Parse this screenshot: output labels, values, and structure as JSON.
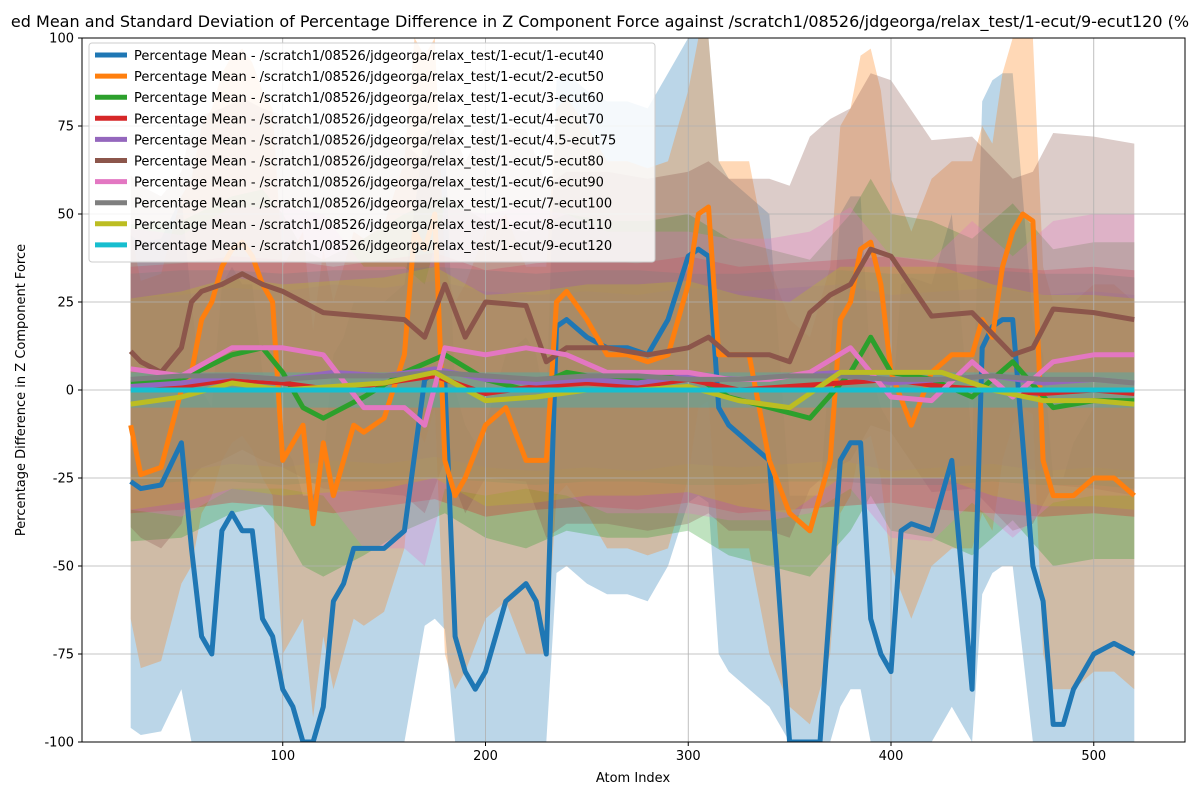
{
  "chart_data": {
    "type": "line",
    "title": "ed Mean and Standard Deviation of Percentage Difference in Z Component Force against /scratch1/08526/jdgeorga/relax_test/1-ecut/9-ecut120 (%",
    "xlabel": "Atom Index",
    "ylabel": "Percentage Difference in Z Component Force",
    "xlim": [
      1,
      545
    ],
    "ylim": [
      -100,
      100
    ],
    "xticks": [
      100,
      200,
      300,
      400,
      500
    ],
    "yticks": [
      -100,
      -75,
      -50,
      -25,
      0,
      25,
      50,
      75,
      100
    ],
    "grid": true,
    "legend_position": "top-left",
    "series": [
      {
        "name": "Percentage Mean - /scratch1/08526/jdgeorga/relax_test/1-ecut/1-ecut40",
        "color": "#1f77b4",
        "x": [
          25,
          30,
          40,
          50,
          55,
          60,
          65,
          70,
          75,
          80,
          85,
          90,
          95,
          100,
          105,
          110,
          115,
          120,
          125,
          130,
          135,
          140,
          150,
          160,
          170,
          175,
          180,
          185,
          190,
          195,
          200,
          210,
          220,
          225,
          230,
          235,
          240,
          250,
          260,
          270,
          280,
          290,
          300,
          305,
          310,
          315,
          320,
          330,
          340,
          350,
          355,
          360,
          365,
          370,
          375,
          380,
          385,
          390,
          395,
          400,
          405,
          410,
          420,
          430,
          440,
          445,
          450,
          455,
          460,
          470,
          475,
          480,
          485,
          490,
          500,
          510,
          520
        ],
        "values": [
          -26,
          -28,
          -27,
          -15,
          -45,
          -70,
          -75,
          -40,
          -35,
          -40,
          -40,
          -65,
          -70,
          -85,
          -90,
          -100,
          -100,
          -90,
          -60,
          -55,
          -45,
          -45,
          -45,
          -40,
          3,
          5,
          2,
          -70,
          -80,
          -85,
          -80,
          -60,
          -55,
          -60,
          -75,
          18,
          20,
          15,
          12,
          12,
          10,
          20,
          38,
          40,
          38,
          -5,
          -10,
          -15,
          -20,
          -100,
          -100,
          -100,
          -100,
          -60,
          -20,
          -15,
          -15,
          -65,
          -75,
          -80,
          -40,
          -38,
          -40,
          -20,
          -85,
          12,
          18,
          20,
          20,
          -50,
          -60,
          -95,
          -95,
          -85,
          -75,
          -72,
          -75
        ]
      },
      {
        "name": "Percentage Mean - /scratch1/08526/jdgeorga/relax_test/1-ecut/2-ecut50",
        "color": "#ff7f0e",
        "x": [
          25,
          30,
          40,
          50,
          55,
          60,
          65,
          70,
          75,
          80,
          85,
          90,
          95,
          100,
          105,
          110,
          115,
          120,
          125,
          130,
          135,
          140,
          150,
          160,
          165,
          170,
          175,
          180,
          185,
          190,
          200,
          210,
          220,
          230,
          235,
          240,
          250,
          260,
          270,
          280,
          290,
          300,
          305,
          310,
          315,
          320,
          330,
          340,
          350,
          360,
          370,
          375,
          380,
          385,
          390,
          395,
          400,
          410,
          420,
          430,
          440,
          445,
          450,
          455,
          460,
          465,
          470,
          475,
          480,
          490,
          500,
          510,
          520
        ],
        "values": [
          -10,
          -24,
          -22,
          0,
          5,
          20,
          25,
          35,
          40,
          42,
          38,
          30,
          25,
          -20,
          -15,
          -10,
          -38,
          -15,
          -30,
          -20,
          -10,
          -12,
          -8,
          10,
          45,
          40,
          50,
          -20,
          -30,
          -25,
          -10,
          -5,
          -20,
          -20,
          25,
          28,
          20,
          10,
          10,
          8,
          10,
          30,
          50,
          52,
          10,
          10,
          10,
          -20,
          -35,
          -40,
          -20,
          20,
          25,
          40,
          42,
          30,
          5,
          -10,
          5,
          10,
          10,
          20,
          15,
          35,
          45,
          50,
          48,
          -20,
          -30,
          -30,
          -25,
          -25,
          -30
        ]
      },
      {
        "name": "Percentage Mean - /scratch1/08526/jdgeorga/relax_test/1-ecut/3-ecut60",
        "color": "#2ca02c",
        "x": [
          25,
          50,
          75,
          90,
          100,
          110,
          120,
          140,
          160,
          180,
          200,
          220,
          240,
          260,
          280,
          300,
          320,
          340,
          360,
          380,
          390,
          400,
          420,
          440,
          460,
          480,
          500,
          520
        ],
        "values": [
          2,
          3,
          10,
          12,
          5,
          -5,
          -8,
          -2,
          5,
          10,
          3,
          0,
          5,
          3,
          3,
          5,
          -2,
          -5,
          -8,
          5,
          15,
          5,
          3,
          -2,
          8,
          -5,
          -3,
          -3
        ]
      },
      {
        "name": "Percentage Mean - /scratch1/08526/jdgeorga/relax_test/1-ecut/4-ecut70",
        "color": "#d62728",
        "x": [
          25,
          50,
          75,
          100,
          125,
          150,
          175,
          200,
          225,
          250,
          275,
          300,
          325,
          350,
          375,
          400,
          425,
          450,
          475,
          500,
          520
        ],
        "values": [
          0,
          1,
          3,
          2,
          0,
          2,
          4,
          -1,
          1,
          2,
          1,
          3,
          0,
          1,
          2,
          3,
          1,
          0,
          -1,
          0,
          -1
        ]
      },
      {
        "name": "Percentage Mean - /scratch1/08526/jdgeorga/relax_test/1-ecut/4.5-ecut75",
        "color": "#9467bd",
        "x": [
          25,
          50,
          75,
          100,
          125,
          150,
          175,
          200,
          225,
          250,
          275,
          300,
          325,
          350,
          375,
          400,
          425,
          450,
          475,
          500,
          520
        ],
        "values": [
          1,
          2,
          4,
          3,
          5,
          4,
          6,
          3,
          2,
          3,
          2,
          4,
          3,
          4,
          5,
          2,
          3,
          4,
          2,
          3,
          2
        ]
      },
      {
        "name": "Percentage Mean - /scratch1/08526/jdgeorga/relax_test/1-ecut/5-ecut80",
        "color": "#8c564b",
        "x": [
          25,
          30,
          40,
          50,
          55,
          60,
          70,
          80,
          90,
          100,
          110,
          120,
          140,
          160,
          170,
          180,
          190,
          200,
          220,
          230,
          240,
          260,
          280,
          300,
          310,
          320,
          340,
          350,
          360,
          370,
          380,
          390,
          400,
          420,
          440,
          460,
          470,
          480,
          500,
          520
        ],
        "values": [
          11,
          8,
          5,
          12,
          25,
          28,
          30,
          33,
          30,
          28,
          25,
          22,
          21,
          20,
          15,
          30,
          15,
          25,
          24,
          8,
          12,
          12,
          10,
          12,
          15,
          10,
          10,
          8,
          22,
          27,
          30,
          40,
          38,
          21,
          22,
          10,
          12,
          23,
          22,
          20
        ]
      },
      {
        "name": "Percentage Mean - /scratch1/08526/jdgeorga/relax_test/1-ecut/6-ecut90",
        "color": "#e377c2",
        "x": [
          25,
          50,
          75,
          100,
          120,
          140,
          160,
          170,
          180,
          200,
          220,
          240,
          260,
          280,
          300,
          320,
          340,
          360,
          380,
          400,
          420,
          440,
          460,
          480,
          500,
          520
        ],
        "values": [
          6,
          4,
          12,
          12,
          10,
          -5,
          -5,
          -10,
          12,
          10,
          12,
          10,
          5,
          5,
          5,
          3,
          3,
          5,
          12,
          -2,
          -3,
          8,
          -2,
          8,
          10,
          10
        ]
      },
      {
        "name": "Percentage Mean - /scratch1/08526/jdgeorga/relax_test/1-ecut/7-ecut100",
        "color": "#7f7f7f",
        "x": [
          25,
          50,
          75,
          100,
          125,
          150,
          175,
          200,
          225,
          250,
          275,
          300,
          325,
          350,
          375,
          400,
          425,
          450,
          475,
          500,
          520
        ],
        "values": [
          3,
          4,
          4,
          3,
          4,
          4,
          5,
          4,
          3,
          4,
          4,
          3,
          3,
          4,
          4,
          3,
          3,
          4,
          3,
          3,
          2
        ]
      },
      {
        "name": "Percentage Mean - /scratch1/08526/jdgeorga/relax_test/1-ecut/8-ecut110",
        "color": "#bcbd22",
        "x": [
          25,
          50,
          75,
          100,
          125,
          150,
          175,
          200,
          225,
          250,
          275,
          300,
          325,
          350,
          375,
          400,
          425,
          450,
          475,
          500,
          520
        ],
        "values": [
          -4,
          -2,
          2,
          0,
          1,
          2,
          5,
          -3,
          -2,
          0,
          0,
          1,
          -3,
          -5,
          5,
          5,
          5,
          0,
          -3,
          -3,
          -4
        ]
      },
      {
        "name": "Percentage Mean - /scratch1/08526/jdgeorga/relax_test/1-ecut/9-ecut120",
        "color": "#17becf",
        "x": [
          25,
          520
        ],
        "values": [
          0,
          0
        ]
      }
    ]
  }
}
